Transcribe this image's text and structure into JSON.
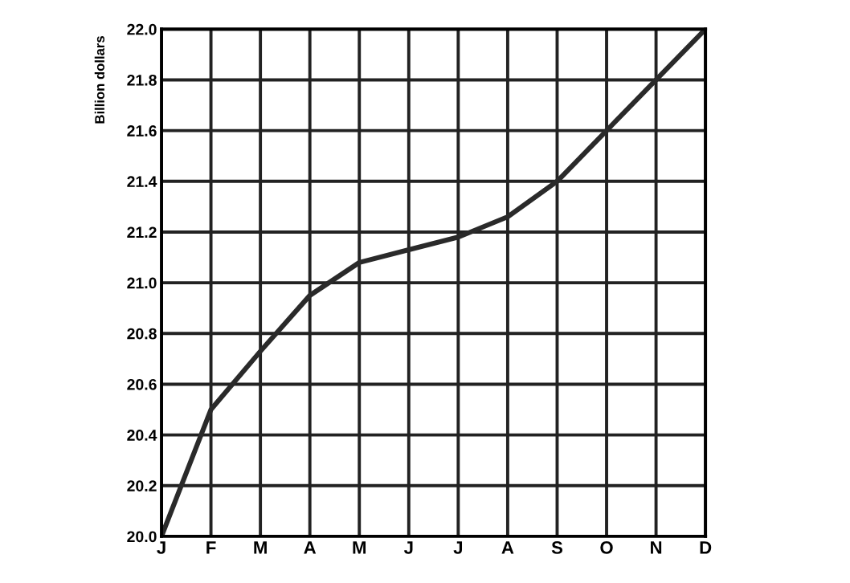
{
  "chart_data": {
    "type": "line",
    "ylabel": "Billion dollars",
    "categories": [
      "J",
      "F",
      "M",
      "A",
      "M",
      "J",
      "J",
      "A",
      "S",
      "O",
      "N",
      "D"
    ],
    "series": [
      {
        "color": "#2a2a2a",
        "values": [
          20.0,
          20.5,
          20.73,
          20.95,
          21.08,
          21.13,
          21.18,
          21.26,
          21.4,
          21.6,
          21.8,
          22.0
        ]
      }
    ],
    "ylim": [
      20.0,
      22.0
    ],
    "yticks": [
      {
        "value": 20,
        "label": "20.0"
      },
      20.2,
      20.4,
      20.6,
      20.8,
      {
        "value": 21,
        "label": "21.0"
      },
      21.2,
      21.4,
      21.6,
      21.8,
      {
        "value": 22,
        "label": "22.0"
      }
    ],
    "grid": true,
    "marker": "none",
    "line_style": "solid"
  }
}
